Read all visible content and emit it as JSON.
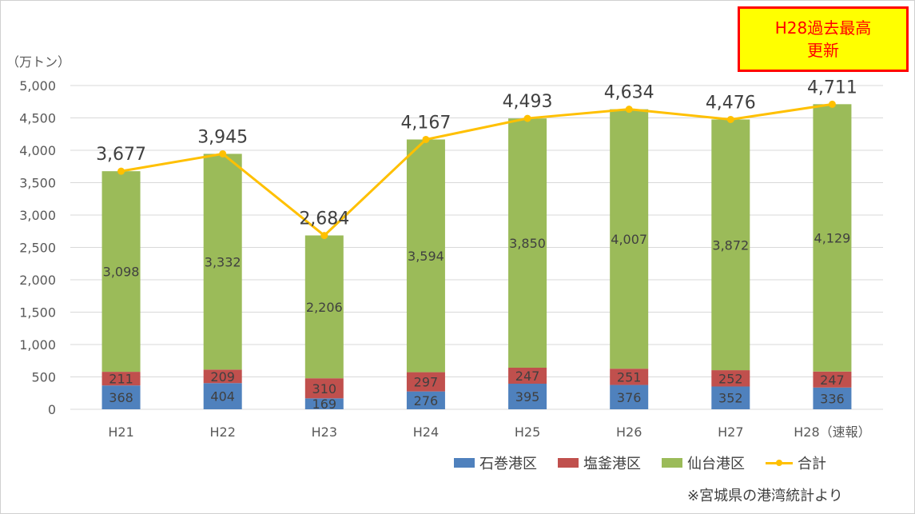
{
  "badge": {
    "line1": "H28過去最高",
    "line2": "更新"
  },
  "unit_label": "（万トン）",
  "source_note": "※宮城県の港湾統計より",
  "chart_data": {
    "type": "bar",
    "stacked": true,
    "categories": [
      "H21",
      "H22",
      "H23",
      "H24",
      "H25",
      "H26",
      "H27",
      "H28（速報）"
    ],
    "series": [
      {
        "name": "石巻港区",
        "values": [
          368,
          404,
          169,
          276,
          395,
          376,
          352,
          336
        ],
        "color": "#4f81bd"
      },
      {
        "name": "塩釜港区",
        "values": [
          211,
          209,
          310,
          297,
          247,
          251,
          252,
          247
        ],
        "color": "#c0504d"
      },
      {
        "name": "仙台港区",
        "values": [
          3098,
          3332,
          2206,
          3594,
          3850,
          4007,
          3872,
          4129
        ],
        "color": "#9bbb59"
      }
    ],
    "line_series": {
      "name": "合計",
      "values": [
        3677,
        3945,
        2684,
        4167,
        4493,
        4634,
        4476,
        4711
      ],
      "color": "#ffc000"
    },
    "ylim": [
      0,
      5000
    ],
    "yticks": [
      "0",
      "500",
      "1,000",
      "1,500",
      "2,000",
      "2,500",
      "3,000",
      "3,500",
      "4,000",
      "4,500",
      "5,000"
    ],
    "grid": true,
    "legend": "bottom-right"
  }
}
